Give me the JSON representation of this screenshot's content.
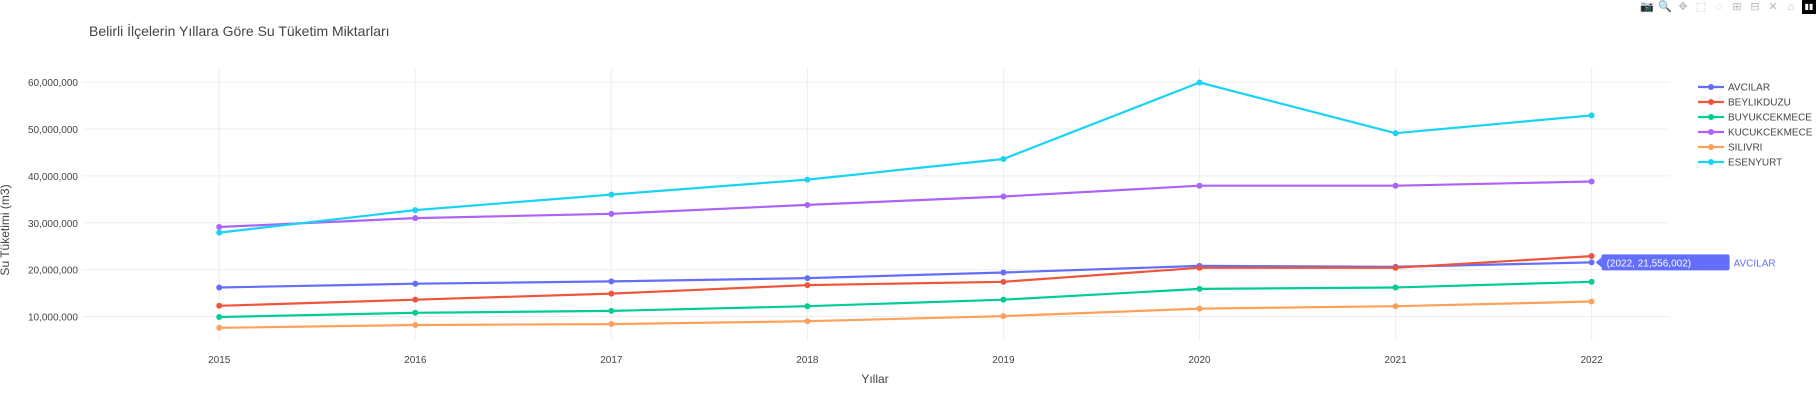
{
  "toolbar": {
    "buttons": [
      {
        "name": "camera-icon",
        "glyph": "📷"
      },
      {
        "name": "zoom-icon",
        "glyph": "🔍",
        "active": true
      },
      {
        "name": "pan-icon",
        "glyph": "✥"
      },
      {
        "name": "box-select-icon",
        "glyph": "⬚"
      },
      {
        "name": "lasso-select-icon",
        "glyph": "◌"
      },
      {
        "name": "zoom-in-icon",
        "glyph": "⊞"
      },
      {
        "name": "zoom-out-icon",
        "glyph": "⊟"
      },
      {
        "name": "autoscale-icon",
        "glyph": "✕"
      },
      {
        "name": "reset-axes-icon",
        "glyph": "⌂"
      }
    ],
    "logo_glyph": "▮▮"
  },
  "chart_data": {
    "type": "line",
    "title": "Belirli İlçelerin Yıllara Göre Su Tüketim Miktarları",
    "xlabel": "Yıllar",
    "ylabel": "Su Tüketimi (m3)",
    "x": [
      2015,
      2016,
      2017,
      2018,
      2019,
      2020,
      2021,
      2022
    ],
    "xlim": [
      2014.3,
      2022.4
    ],
    "ylim": [
      5000000,
      63000000
    ],
    "yticks": [
      10000000,
      20000000,
      30000000,
      40000000,
      50000000,
      60000000
    ],
    "ytick_labels": [
      "10,000,000",
      "20,000,000",
      "30,000,000",
      "40,000,000",
      "50,000,000",
      "60,000,000"
    ],
    "xtick_labels": [
      "2015",
      "2016",
      "2017",
      "2018",
      "2019",
      "2020",
      "2021",
      "2022"
    ],
    "grid": true,
    "legend_position": "top-right",
    "series": [
      {
        "name": "AVCILAR",
        "color": "#636efa",
        "values": [
          16200000,
          17000000,
          17500000,
          18200000,
          19400000,
          20800000,
          20600000,
          21556002
        ]
      },
      {
        "name": "BEYLIKDUZU",
        "color": "#ef553b",
        "values": [
          12300000,
          13600000,
          14900000,
          16700000,
          17400000,
          20400000,
          20400000,
          22900000
        ]
      },
      {
        "name": "BUYUKCEKMECE",
        "color": "#00cc96",
        "values": [
          9900000,
          10800000,
          11200000,
          12200000,
          13600000,
          15900000,
          16200000,
          17400000
        ]
      },
      {
        "name": "KUCUKCEKMECE",
        "color": "#ab63fa",
        "values": [
          29100000,
          31000000,
          31900000,
          33800000,
          35600000,
          37900000,
          37900000,
          38800000
        ]
      },
      {
        "name": "SILIVRI",
        "color": "#ffa15a",
        "values": [
          7600000,
          8200000,
          8400000,
          9000000,
          10100000,
          11700000,
          12200000,
          13200000
        ]
      },
      {
        "name": "ESENYURT",
        "color": "#19d3f3",
        "values": [
          27900000,
          32700000,
          36000000,
          39200000,
          43600000,
          59900000,
          49100000,
          52900000
        ]
      }
    ],
    "hover": {
      "label": "(2022, 21,556,002)",
      "series_name": "AVCILAR",
      "x": 2022,
      "y": 21556002,
      "color": "#636efa"
    }
  }
}
